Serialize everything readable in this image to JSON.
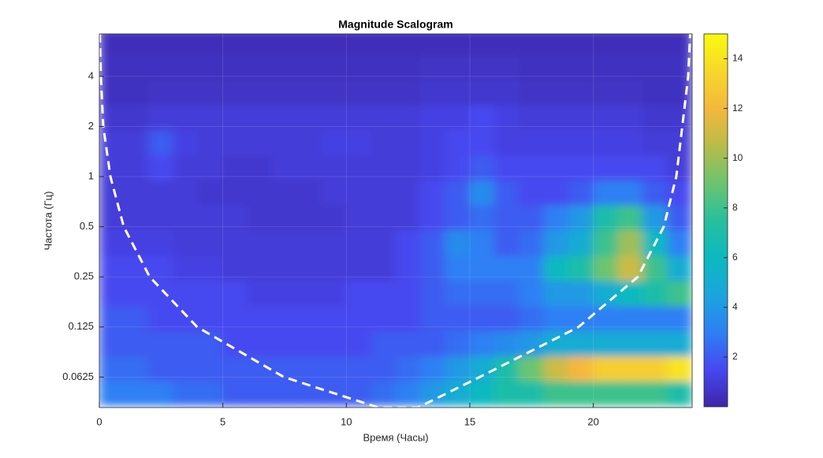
{
  "chart_data": {
    "type": "heatmap",
    "title": "Magnitude Scalogram",
    "xlabel": "Время (Часы)",
    "ylabel": "Частота (Гц)",
    "xlim": [
      0,
      24
    ],
    "xticks": [
      0,
      5,
      10,
      15,
      20
    ],
    "ylim": [
      0.041,
      7.2
    ],
    "yscale": "log",
    "yticks": [
      0.0625,
      0.125,
      0.25,
      0.5,
      1,
      2,
      4
    ],
    "grid": true,
    "x": [
      0.5,
      1.5,
      2.5,
      3.5,
      4.5,
      5.5,
      6.5,
      7.5,
      8.5,
      9.5,
      10.5,
      11.5,
      12.5,
      13.5,
      14.5,
      15.5,
      16.5,
      17.5,
      18.5,
      19.5,
      20.5,
      21.5,
      22.5,
      23.5
    ],
    "y": [
      0.05,
      0.07,
      0.1,
      0.14,
      0.2,
      0.28,
      0.4,
      0.57,
      0.8,
      1.13,
      1.6,
      2.26,
      3.2,
      4.5,
      6.4
    ],
    "z": [
      [
        3,
        3,
        3,
        2.5,
        2.5,
        2,
        2,
        2,
        2,
        2,
        2,
        2.5,
        3,
        4,
        5,
        6,
        7,
        7,
        8,
        8,
        8,
        8,
        8,
        7
      ],
      [
        2.5,
        2.5,
        2,
        2,
        2,
        2,
        2,
        2,
        2,
        2,
        2,
        2,
        2.5,
        3,
        4,
        5,
        7,
        9,
        11,
        12,
        13,
        13,
        13,
        14
      ],
      [
        2,
        2,
        2,
        2,
        2,
        1.5,
        1.5,
        1.5,
        1.5,
        1.5,
        1.5,
        2,
        2,
        2,
        2.5,
        3,
        3.5,
        4,
        5,
        5,
        5,
        5,
        5,
        5
      ],
      [
        2,
        2,
        1.5,
        1.5,
        1.5,
        1.5,
        1.5,
        1.5,
        1.5,
        1.5,
        1.5,
        1.5,
        1.5,
        2,
        2,
        2,
        2,
        2.5,
        3,
        3,
        3,
        3,
        3,
        3
      ],
      [
        1.5,
        1.5,
        1.5,
        1.5,
        1.5,
        1.5,
        1.2,
        1.2,
        1.2,
        1.2,
        1.5,
        1.5,
        1.5,
        2,
        2.5,
        2.5,
        2.5,
        3,
        4,
        4,
        5,
        6,
        7,
        8
      ],
      [
        1.5,
        1.5,
        1.5,
        1.2,
        1.2,
        1,
        1,
        1,
        1,
        1,
        1,
        1,
        1.5,
        2,
        3,
        3,
        3,
        3,
        6,
        7,
        9,
        11,
        8,
        5
      ],
      [
        1.2,
        1.2,
        1.2,
        1,
        1,
        1,
        1,
        1,
        1,
        1,
        1,
        1,
        1.5,
        2,
        3.5,
        3,
        2,
        2.5,
        4,
        5,
        8,
        10,
        6,
        3
      ],
      [
        1,
        1,
        1,
        1,
        1,
        1,
        0.8,
        0.8,
        0.8,
        0.8,
        1,
        1,
        1,
        1.5,
        2,
        2.5,
        2,
        2,
        3,
        4,
        7,
        8,
        4,
        2
      ],
      [
        1,
        1,
        1,
        1,
        0.8,
        0.8,
        0.8,
        0.8,
        0.8,
        1,
        1,
        1,
        1,
        1.5,
        2,
        3.5,
        2,
        1.5,
        1.5,
        2,
        3,
        3,
        2,
        1.5
      ],
      [
        1,
        1,
        1.5,
        1,
        1,
        0.8,
        0.8,
        1,
        1,
        1,
        1,
        1,
        1,
        1.2,
        1.5,
        2,
        1.5,
        1.5,
        1.5,
        1.5,
        1.5,
        1.5,
        1.5,
        1
      ],
      [
        1,
        1,
        2,
        1.2,
        1,
        1,
        1,
        1,
        1,
        1.2,
        1.2,
        1,
        1,
        1.2,
        1.5,
        1.5,
        1.2,
        1.2,
        1.2,
        1.2,
        1.2,
        1.2,
        1,
        1
      ],
      [
        0.8,
        0.8,
        1,
        1,
        1,
        1,
        1,
        1,
        1,
        1,
        1,
        1,
        1,
        1.2,
        1.2,
        1.5,
        1.2,
        1,
        1,
        1,
        1,
        1,
        0.8,
        0.8
      ],
      [
        0.5,
        0.5,
        0.6,
        0.6,
        0.6,
        0.6,
        0.6,
        0.6,
        0.6,
        0.6,
        0.6,
        0.6,
        0.6,
        0.8,
        0.8,
        0.8,
        0.8,
        0.6,
        0.6,
        0.6,
        0.6,
        0.6,
        0.5,
        0.5
      ],
      [
        0.5,
        0.5,
        0.5,
        0.5,
        0.5,
        0.5,
        0.5,
        0.5,
        0.5,
        0.5,
        0.5,
        0.5,
        0.5,
        0.6,
        0.6,
        0.6,
        0.6,
        0.5,
        0.5,
        0.5,
        0.5,
        0.5,
        0.5,
        0.5
      ],
      [
        0.4,
        0.4,
        0.4,
        0.4,
        0.4,
        0.4,
        0.4,
        0.4,
        0.4,
        0.4,
        0.4,
        0.4,
        0.4,
        0.4,
        0.4,
        0.4,
        0.4,
        0.4,
        0.4,
        0.4,
        0.4,
        0.4,
        0.4,
        0.4
      ]
    ],
    "clim": [
      0,
      15
    ],
    "cticks": [
      2,
      4,
      6,
      8,
      10,
      12,
      14
    ],
    "colormap": [
      "#3e26a8",
      "#4748f0",
      "#2d80f4",
      "#1ba5dc",
      "#0cb9c0",
      "#27bf9c",
      "#6cc46f",
      "#b8bc4a",
      "#f4b83c",
      "#f7d72a",
      "#f9fb0e"
    ],
    "coi": {
      "color": "#ffffff",
      "x": [
        0.02,
        0.06,
        0.16,
        0.45,
        0.99,
        2.04,
        3.96,
        7.47,
        11.3,
        12.9,
        15.4,
        19.4,
        21.8,
        22.85,
        23.36,
        23.6,
        23.84,
        23.92
      ],
      "y": [
        7.2,
        4,
        2,
        1,
        0.5,
        0.25,
        0.125,
        0.0625,
        0.041,
        0.041,
        0.0625,
        0.125,
        0.25,
        0.5,
        1,
        2,
        4,
        7.2
      ]
    }
  }
}
